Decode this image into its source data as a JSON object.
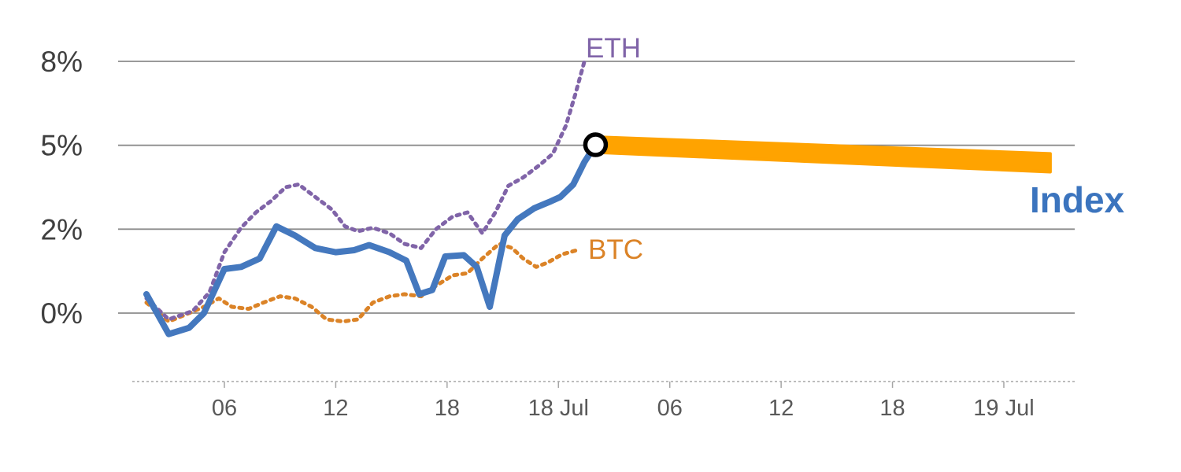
{
  "chart_data": {
    "type": "line",
    "title": "",
    "xlabel": "",
    "ylabel": "",
    "y_axis": {
      "tick_labels": [
        "0%",
        "2%",
        "5%",
        "8%"
      ],
      "tick_values": [
        0,
        2,
        5,
        8
      ],
      "grid": true
    },
    "x_axis": {
      "tick_labels": [
        "06",
        "12",
        "18",
        "18 Jul",
        "06",
        "12",
        "18",
        "19 Jul"
      ],
      "tick_hours": [
        6,
        12,
        18,
        24,
        30,
        36,
        42,
        48
      ]
    },
    "series": [
      {
        "name": "Index",
        "color": "#4478BE",
        "line_style": "solid",
        "points": [
          [
            1.8,
            0.45
          ],
          [
            3.0,
            -0.5
          ],
          [
            4.1,
            -0.35
          ],
          [
            4.9,
            0.0
          ],
          [
            6.0,
            1.05
          ],
          [
            6.9,
            1.1
          ],
          [
            7.9,
            1.3
          ],
          [
            8.8,
            2.1
          ],
          [
            9.8,
            1.85
          ],
          [
            10.9,
            1.55
          ],
          [
            12.0,
            1.45
          ],
          [
            13.0,
            1.5
          ],
          [
            13.8,
            1.62
          ],
          [
            14.9,
            1.45
          ],
          [
            15.8,
            1.25
          ],
          [
            16.5,
            0.45
          ],
          [
            17.2,
            0.55
          ],
          [
            17.9,
            1.35
          ],
          [
            18.9,
            1.38
          ],
          [
            19.6,
            1.1
          ],
          [
            20.3,
            0.15
          ],
          [
            21.1,
            1.85
          ],
          [
            21.8,
            2.35
          ],
          [
            22.7,
            2.75
          ],
          [
            23.6,
            3.0
          ],
          [
            24.1,
            3.15
          ],
          [
            24.8,
            3.6
          ],
          [
            25.4,
            4.4
          ],
          [
            26.0,
            5.02
          ]
        ]
      },
      {
        "name": "ETH",
        "color": "#8064A8",
        "line_style": "dotted",
        "points": [
          [
            1.8,
            0.35
          ],
          [
            3.0,
            -0.15
          ],
          [
            4.3,
            0.05
          ],
          [
            5.2,
            0.5
          ],
          [
            6.0,
            1.45
          ],
          [
            6.9,
            2.05
          ],
          [
            7.7,
            2.6
          ],
          [
            8.5,
            3.0
          ],
          [
            9.3,
            3.5
          ],
          [
            10.0,
            3.6
          ],
          [
            10.9,
            3.15
          ],
          [
            11.8,
            2.7
          ],
          [
            12.5,
            2.1
          ],
          [
            13.2,
            1.95
          ],
          [
            14.0,
            2.05
          ],
          [
            14.9,
            1.9
          ],
          [
            15.7,
            1.65
          ],
          [
            16.6,
            1.55
          ],
          [
            17.4,
            2.0
          ],
          [
            18.3,
            2.45
          ],
          [
            19.1,
            2.6
          ],
          [
            19.9,
            1.9
          ],
          [
            20.6,
            2.6
          ],
          [
            21.3,
            3.55
          ],
          [
            22.1,
            3.85
          ],
          [
            23.0,
            4.3
          ],
          [
            23.7,
            4.7
          ],
          [
            24.4,
            5.7
          ],
          [
            24.9,
            6.8
          ],
          [
            25.4,
            8.0
          ]
        ]
      },
      {
        "name": "BTC",
        "color": "#DB8327",
        "line_style": "dotted",
        "points": [
          [
            1.8,
            0.25
          ],
          [
            3.0,
            -0.2
          ],
          [
            4.1,
            0.0
          ],
          [
            4.9,
            0.15
          ],
          [
            5.7,
            0.35
          ],
          [
            6.4,
            0.15
          ],
          [
            7.3,
            0.1
          ],
          [
            8.1,
            0.25
          ],
          [
            9.0,
            0.4
          ],
          [
            9.8,
            0.35
          ],
          [
            10.7,
            0.15
          ],
          [
            11.5,
            -0.15
          ],
          [
            12.4,
            -0.2
          ],
          [
            13.2,
            -0.15
          ],
          [
            14.0,
            0.25
          ],
          [
            14.9,
            0.4
          ],
          [
            15.7,
            0.45
          ],
          [
            16.6,
            0.4
          ],
          [
            17.4,
            0.65
          ],
          [
            18.3,
            0.9
          ],
          [
            19.1,
            0.95
          ],
          [
            19.9,
            1.3
          ],
          [
            20.8,
            1.65
          ],
          [
            21.5,
            1.55
          ],
          [
            22.1,
            1.3
          ],
          [
            22.8,
            1.1
          ],
          [
            23.4,
            1.2
          ],
          [
            24.2,
            1.4
          ],
          [
            25.0,
            1.5
          ]
        ]
      }
    ],
    "forecast_band": {
      "series": "Index",
      "color": "#FFA300",
      "upper": [
        [
          26.0,
          5.3
        ],
        [
          50.5,
          4.7
        ]
      ],
      "lower": [
        [
          26.0,
          4.75
        ],
        [
          50.5,
          4.05
        ]
      ]
    },
    "marker": {
      "x": 26.0,
      "y": 5.02,
      "style": "black-ring"
    }
  },
  "labels": {
    "eth": "ETH",
    "btc": "BTC",
    "index": "Index"
  },
  "colors": {
    "index": "#4478BE",
    "eth": "#8064A8",
    "btc": "#DB8327",
    "band": "#FFA300",
    "grid": "#8C8C8C",
    "axis": "#A6A6A6",
    "ytick": "#3F3F3F",
    "xtick": "#595959",
    "index_label": "#3B74BE",
    "marker_ring": "#000000",
    "marker_fill": "#FFFFFF"
  }
}
